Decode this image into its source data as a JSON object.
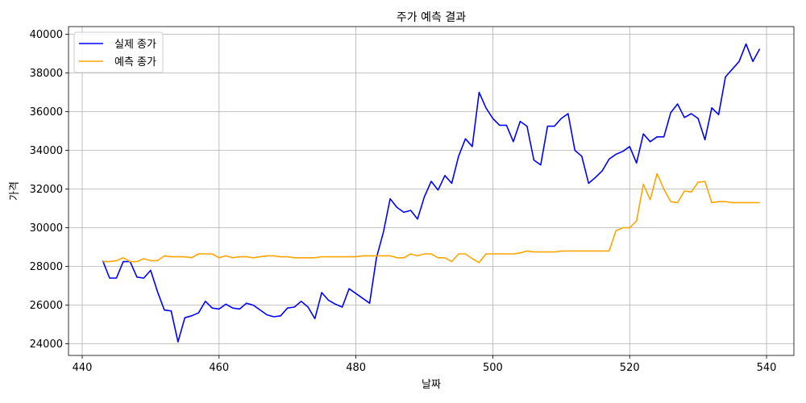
{
  "chart_data": {
    "type": "line",
    "title": "주가 예측 결과",
    "xlabel": "날짜",
    "ylabel": "가격",
    "xlim": [
      438,
      544
    ],
    "ylim": [
      23400,
      40400
    ],
    "xticks": [
      440,
      460,
      480,
      500,
      520,
      540
    ],
    "yticks": [
      24000,
      26000,
      28000,
      30000,
      32000,
      34000,
      36000,
      38000,
      40000
    ],
    "grid": true,
    "legend_position": "top-left",
    "x": [
      443,
      444,
      445,
      446,
      447,
      448,
      449,
      450,
      451,
      452,
      453,
      454,
      455,
      456,
      457,
      458,
      459,
      460,
      461,
      462,
      463,
      464,
      465,
      466,
      467,
      468,
      469,
      470,
      471,
      472,
      473,
      474,
      475,
      476,
      477,
      478,
      479,
      480,
      481,
      482,
      483,
      484,
      485,
      486,
      487,
      488,
      489,
      490,
      491,
      492,
      493,
      494,
      495,
      496,
      497,
      498,
      499,
      500,
      501,
      502,
      503,
      504,
      505,
      506,
      507,
      508,
      509,
      510,
      511,
      512,
      513,
      514,
      515,
      516,
      517,
      518,
      519,
      520,
      521,
      522,
      523,
      524,
      525,
      526,
      527,
      528,
      529,
      530,
      531,
      532,
      533,
      534,
      535,
      536,
      537,
      538,
      539
    ],
    "series": [
      {
        "name": "실제 종가",
        "color": "#0000ff",
        "values": [
          28300,
          27400,
          27400,
          28250,
          28250,
          27450,
          27400,
          27800,
          26700,
          25750,
          25700,
          24100,
          25350,
          25450,
          25600,
          26200,
          25850,
          25800,
          26050,
          25850,
          25800,
          26100,
          26000,
          25750,
          25500,
          25400,
          25450,
          25850,
          25900,
          26200,
          25900,
          25300,
          26650,
          26250,
          26050,
          25900,
          26850,
          26600,
          26350,
          26100,
          28450,
          29750,
          31500,
          31050,
          30800,
          30900,
          30450,
          31600,
          32400,
          31950,
          32700,
          32300,
          33700,
          34600,
          34200,
          37000,
          36200,
          35650,
          35300,
          35300,
          34450,
          35500,
          35250,
          33500,
          33250,
          35250,
          35250,
          35650,
          35900,
          34000,
          33700,
          32300,
          32600,
          32950,
          33550,
          33800,
          33950,
          34200,
          33350,
          34850,
          34450,
          34700,
          34700,
          35950,
          36400,
          35700,
          35900,
          35650,
          34550,
          36200,
          35850,
          37800,
          38200,
          38600,
          39500,
          38600,
          39250
        ]
      },
      {
        "name": "예측 종가",
        "color": "#ffa500",
        "values": [
          28250,
          28250,
          28300,
          28450,
          28250,
          28250,
          28400,
          28300,
          28300,
          28550,
          28500,
          28500,
          28500,
          28450,
          28650,
          28650,
          28650,
          28450,
          28550,
          28450,
          28500,
          28500,
          28450,
          28500,
          28550,
          28550,
          28500,
          28500,
          28450,
          28450,
          28450,
          28450,
          28500,
          28500,
          28500,
          28500,
          28500,
          28500,
          28550,
          28550,
          28550,
          28550,
          28550,
          28450,
          28450,
          28650,
          28550,
          28650,
          28650,
          28450,
          28450,
          28250,
          28650,
          28650,
          28400,
          28200,
          28650,
          28650,
          28650,
          28650,
          28650,
          28700,
          28800,
          28750,
          28750,
          28750,
          28750,
          28800,
          28800,
          28800,
          28800,
          28800,
          28800,
          28800,
          28800,
          29850,
          30000,
          30000,
          30350,
          32250,
          31450,
          32800,
          32000,
          31350,
          31300,
          31900,
          31850,
          32350,
          32400,
          31300,
          31350,
          31350,
          31300,
          31300,
          31300,
          31300,
          31300
        ]
      }
    ]
  }
}
